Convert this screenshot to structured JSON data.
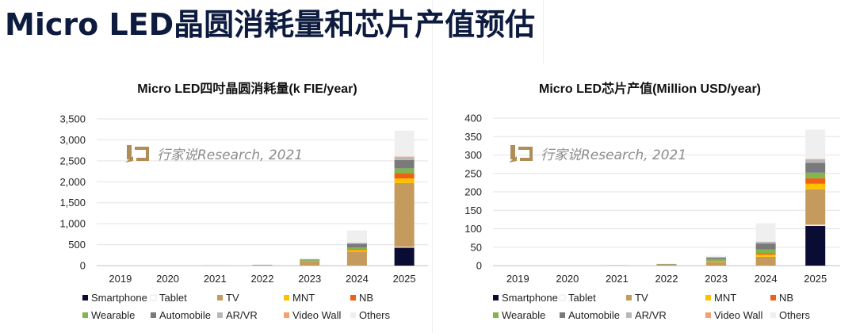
{
  "page": {
    "title": "Micro LED晶圆消耗量和芯片产值预估"
  },
  "watermark": {
    "text": "行家说Research, 2021",
    "logo": "ju-logo-icon"
  },
  "colors": {
    "Smartphone": "#0b0c33",
    "Tablet": "#ffffff",
    "TV": "#c59a5d",
    "MNT": "#ffc000",
    "NB": "#f06014",
    "Wearable": "#82b54c",
    "Automobile": "#7a7a7a",
    "AR/VR": "#b8b8b8",
    "Video Wall": "#f4a070",
    "Others": "#efefef"
  },
  "chart_data": [
    {
      "type": "bar",
      "stacked": true,
      "title": "Micro LED四吋晶圆消耗量(k FIE/year)",
      "categories": [
        "2019",
        "2020",
        "2021",
        "2022",
        "2023",
        "2024",
        "2025"
      ],
      "ylim": [
        0,
        3500
      ],
      "yticks": [
        0,
        500,
        1000,
        1500,
        2000,
        2500,
        3000,
        3500
      ],
      "ytick_labels": [
        "0",
        "500",
        "1,000",
        "1,500",
        "2,000",
        "2,500",
        "3,000",
        "3,500"
      ],
      "legend": [
        "Smartphone",
        "Tablet",
        "TV",
        "MNT",
        "NB",
        "Wearable",
        "Automobile",
        "AR/VR",
        "Video Wall",
        "Others"
      ],
      "series": [
        {
          "name": "Smartphone",
          "values": [
            0,
            0,
            0,
            0,
            0,
            0,
            430
          ]
        },
        {
          "name": "Tablet",
          "values": [
            0,
            0,
            0,
            0,
            0,
            0,
            20
          ]
        },
        {
          "name": "TV",
          "values": [
            0,
            0,
            2,
            12,
            110,
            330,
            1520
          ]
        },
        {
          "name": "MNT",
          "values": [
            0,
            0,
            0,
            0,
            0,
            40,
            110
          ]
        },
        {
          "name": "NB",
          "values": [
            0,
            0,
            0,
            0,
            0,
            20,
            130
          ]
        },
        {
          "name": "Wearable",
          "values": [
            0,
            0,
            1,
            3,
            20,
            40,
            110
          ]
        },
        {
          "name": "Automobile",
          "values": [
            0,
            0,
            0,
            2,
            15,
            90,
            200
          ]
        },
        {
          "name": "AR/VR",
          "values": [
            0,
            0,
            0,
            1,
            5,
            20,
            60
          ]
        },
        {
          "name": "Video Wall",
          "values": [
            0,
            0,
            0,
            0,
            0,
            0,
            20
          ]
        },
        {
          "name": "Others",
          "values": [
            0,
            0,
            1,
            4,
            30,
            300,
            620
          ]
        }
      ]
    },
    {
      "type": "bar",
      "stacked": true,
      "title": "Micro LED芯片产值(Million USD/year)",
      "categories": [
        "2019",
        "2020",
        "2021",
        "2022",
        "2023",
        "2024",
        "2025"
      ],
      "ylim": [
        0,
        400
      ],
      "yticks": [
        0,
        50,
        100,
        150,
        200,
        250,
        300,
        350,
        400
      ],
      "ytick_labels": [
        "0",
        "50",
        "100",
        "150",
        "200",
        "250",
        "300",
        "350",
        "400"
      ],
      "legend": [
        "Smartphone",
        "Tablet",
        "TV",
        "MNT",
        "NB",
        "Wearable",
        "Automobile",
        "AR/VR",
        "Video Wall",
        "Others"
      ],
      "series": [
        {
          "name": "Smartphone",
          "values": [
            0,
            0,
            0,
            0,
            0,
            0,
            108
          ]
        },
        {
          "name": "Tablet",
          "values": [
            0,
            0,
            0,
            0,
            0,
            0,
            3
          ]
        },
        {
          "name": "TV",
          "values": [
            0,
            0,
            0.3,
            3,
            10,
            24,
            96
          ]
        },
        {
          "name": "MNT",
          "values": [
            0,
            0,
            0,
            0,
            2,
            6,
            15
          ]
        },
        {
          "name": "NB",
          "values": [
            0,
            0,
            0,
            0,
            1,
            4,
            15
          ]
        },
        {
          "name": "Wearable",
          "values": [
            0,
            0,
            0.2,
            0.5,
            5,
            10,
            15
          ]
        },
        {
          "name": "Automobile",
          "values": [
            0,
            0,
            0,
            0.5,
            4,
            16,
            27
          ]
        },
        {
          "name": "AR/VR",
          "values": [
            0,
            0,
            0,
            0.3,
            1,
            5,
            8
          ]
        },
        {
          "name": "Video Wall",
          "values": [
            0,
            0,
            0,
            0,
            0,
            0,
            2
          ]
        },
        {
          "name": "Others",
          "values": [
            0,
            0,
            0.2,
            0.7,
            4,
            50,
            80
          ]
        }
      ]
    }
  ]
}
